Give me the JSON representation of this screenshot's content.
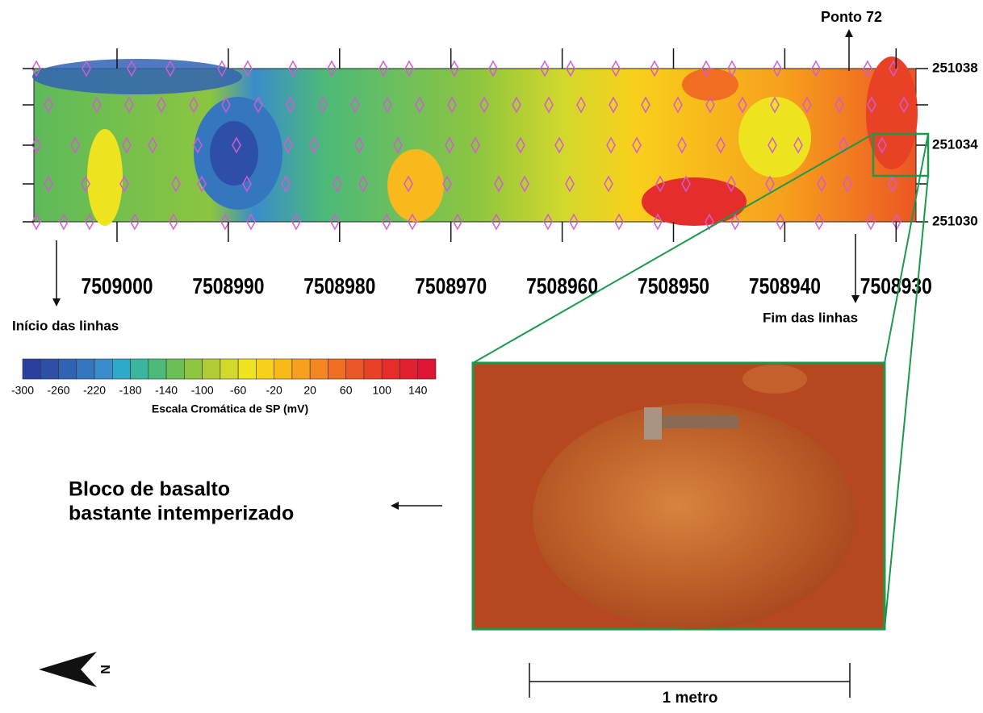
{
  "map": {
    "x_ticks": [
      "7509000",
      "7508990",
      "7508980",
      "7508970",
      "7508960",
      "7508950",
      "7508940",
      "7508930"
    ],
    "y_ticks": [
      "251038",
      "251034",
      "251030"
    ],
    "annotations": {
      "point": "Ponto 72",
      "start": "Início das linhas",
      "end": "Fim das linhas"
    }
  },
  "color_scale": {
    "title": "Escala Cromática de SP (mV)",
    "labels": [
      "-300",
      "-260",
      "-220",
      "-180",
      "-140",
      "-100",
      "-60",
      "-20",
      "20",
      "60",
      "100",
      "140"
    ],
    "colors": [
      "#2b3f9e",
      "#2e4fa8",
      "#3163b4",
      "#3577bf",
      "#3a8ccb",
      "#2fa9c9",
      "#3bb59e",
      "#4cba78",
      "#6bbf55",
      "#8cc540",
      "#b0cd35",
      "#d2d82c",
      "#eee31f",
      "#f8d01b",
      "#f9b81b",
      "#f7a01d",
      "#f4871f",
      "#f06d22",
      "#ec5624",
      "#e84126",
      "#e52e2b",
      "#e22130",
      "#dd1636"
    ]
  },
  "photo": {
    "caption": "Bloco de basalto bastante intemperizado",
    "scale": "1 metro"
  }
}
